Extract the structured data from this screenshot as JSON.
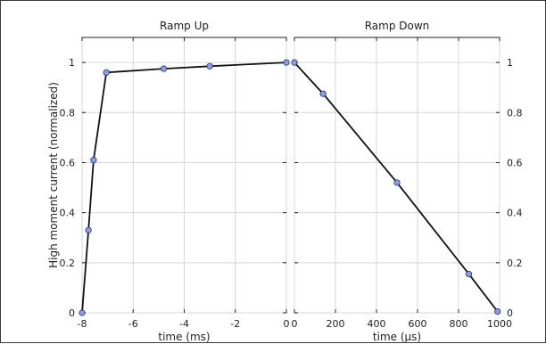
{
  "chart_data": [
    {
      "type": "line",
      "title": "Ramp Up",
      "xlabel": "time (ms)",
      "ylabel": "High moment current (normalized)",
      "xlim": [
        -8,
        0
      ],
      "ylim": [
        0,
        1.1
      ],
      "x_ticks": [
        -8,
        -6,
        -4,
        -2,
        0
      ],
      "y_ticks": [
        0,
        0.2,
        0.4,
        0.6,
        0.8,
        1
      ],
      "grid": true,
      "series": [
        {
          "x": [
            -8.0,
            -7.75,
            -7.55,
            -7.05,
            -4.8,
            -3.0,
            0.0
          ],
          "y": [
            0.0,
            0.33,
            0.61,
            0.96,
            0.975,
            0.985,
            1.0
          ],
          "line_color": "#111111",
          "marker_fill": "#8c9bec",
          "marker_stroke": "#26306f"
        }
      ]
    },
    {
      "type": "line",
      "title": "Ramp Down",
      "xlabel": "time (µs)",
      "ylabel": "",
      "xlim": [
        0,
        1000
      ],
      "ylim": [
        0,
        1.1
      ],
      "x_ticks": [
        0,
        200,
        400,
        600,
        800,
        1000
      ],
      "y_ticks": [
        0,
        0.2,
        0.4,
        0.6,
        0.8,
        1
      ],
      "grid": true,
      "series": [
        {
          "x": [
            0,
            140,
            500,
            850,
            990
          ],
          "y": [
            1.0,
            0.875,
            0.52,
            0.155,
            0.005
          ],
          "line_color": "#111111",
          "marker_fill": "#8c9bec",
          "marker_stroke": "#26306f"
        }
      ]
    }
  ]
}
